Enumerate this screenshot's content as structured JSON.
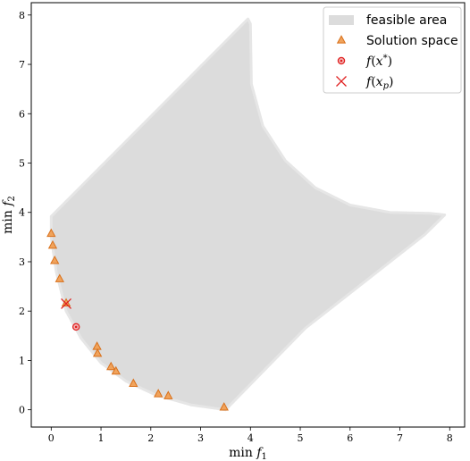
{
  "chart_data": {
    "type": "scatter",
    "title": "",
    "xlabel_text": "min ",
    "xlabel_math": "f",
    "xlabel_sub": "1",
    "ylabel_text": "min ",
    "ylabel_math": "f",
    "ylabel_sub": "2",
    "xlim": [
      -0.4,
      8.3
    ],
    "ylim": [
      -0.35,
      8.25
    ],
    "xticks": [
      0,
      1,
      2,
      3,
      4,
      5,
      6,
      7,
      8
    ],
    "yticks": [
      0,
      1,
      2,
      3,
      4,
      5,
      6,
      7,
      8
    ],
    "xtick_labels": [
      "0",
      "1",
      "2",
      "3",
      "4",
      "5",
      "6",
      "7",
      "8"
    ],
    "ytick_labels": [
      "0",
      "1",
      "2",
      "3",
      "4",
      "5",
      "6",
      "7",
      "8"
    ],
    "grid": false,
    "legend_placement": "top-right",
    "colors": {
      "feasible": "#dcdcdc",
      "solution": "#f0a35c",
      "solution_edge": "#d9701a",
      "optimal": "#e02020",
      "xp": "#e02020"
    },
    "series": [
      {
        "name": "feasible area",
        "kind": "region",
        "polygon": [
          [
            0,
            3.92
          ],
          [
            3.95,
            7.92
          ],
          [
            4.0,
            7.82
          ],
          [
            4.02,
            6.6
          ],
          [
            4.25,
            5.75
          ],
          [
            4.7,
            5.05
          ],
          [
            5.3,
            4.5
          ],
          [
            6.0,
            4.15
          ],
          [
            6.8,
            4.0
          ],
          [
            7.6,
            3.98
          ],
          [
            7.9,
            3.95
          ],
          [
            7.5,
            3.55
          ],
          [
            5.1,
            1.65
          ],
          [
            3.5,
            0.0
          ],
          [
            2.8,
            0.1
          ],
          [
            2.1,
            0.3
          ],
          [
            1.5,
            0.58
          ],
          [
            1.0,
            0.95
          ],
          [
            0.6,
            1.45
          ],
          [
            0.3,
            2.0
          ],
          [
            0.1,
            2.8
          ],
          [
            0.0,
            3.5
          ]
        ]
      },
      {
        "name": "Solution space",
        "kind": "triangle",
        "points": [
          [
            0.0,
            3.57
          ],
          [
            0.03,
            3.33
          ],
          [
            0.07,
            3.02
          ],
          [
            0.17,
            2.65
          ],
          [
            0.3,
            2.16
          ],
          [
            0.92,
            1.28
          ],
          [
            0.93,
            1.14
          ],
          [
            1.2,
            0.87
          ],
          [
            1.3,
            0.78
          ],
          [
            1.65,
            0.53
          ],
          [
            2.15,
            0.32
          ],
          [
            2.35,
            0.28
          ],
          [
            3.47,
            0.05
          ]
        ]
      },
      {
        "name": "f(x*)",
        "kind": "circle",
        "points": [
          [
            0.5,
            1.68
          ]
        ]
      },
      {
        "name": "f(x_p)",
        "kind": "x",
        "points": [
          [
            0.3,
            2.15
          ]
        ]
      }
    ],
    "legend": [
      {
        "label": "feasible area",
        "kind": "patch"
      },
      {
        "label": "Solution space",
        "kind": "triangle"
      },
      {
        "label_math": "f",
        "label_paren": "(",
        "label_var": "x",
        "label_sup": "*",
        "label_close": ")",
        "kind": "circle"
      },
      {
        "label_math": "f",
        "label_paren": "(",
        "label_var": "x",
        "label_sub": "p",
        "label_close": ")",
        "kind": "x"
      }
    ]
  }
}
